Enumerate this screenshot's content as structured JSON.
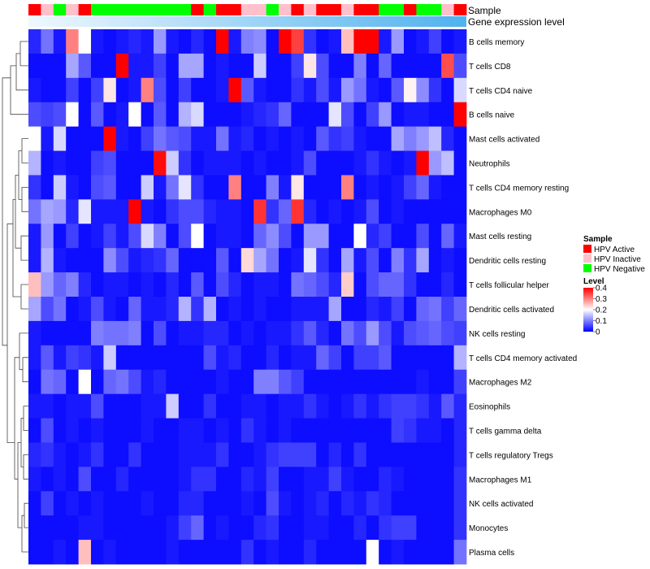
{
  "chart_data": {
    "type": "heatmap",
    "title": "",
    "annotation_rows": [
      "Sample",
      "Gene expression level"
    ],
    "rows": [
      "B cells memory",
      "T cells CD8",
      "T cells CD4 naive",
      "B cells naive",
      "Mast cells activated",
      "Neutrophils",
      "T cells CD4 memory resting",
      "Macrophages M0",
      "Mast cells resting",
      "Dendritic cells resting",
      "T cells follicular helper",
      "Dendritic cells activated",
      "NK cells resting",
      "T cells CD4 memory activated",
      "Macrophages M2",
      "Eosinophils",
      "T cells gamma delta",
      "T cells regulatory  Tregs",
      "Macrophages M1",
      "NK cells activated",
      "Monocytes",
      "Plasma cells"
    ],
    "n_columns": 35,
    "sample_groups": [
      "HPV Active",
      "HPV Inactive",
      "HPV Negative",
      "HPV Inactive",
      "HPV Active",
      "HPV Negative",
      "HPV Negative",
      "HPV Negative",
      "HPV Negative",
      "HPV Negative",
      "HPV Negative",
      "HPV Negative",
      "HPV Negative",
      "HPV Active",
      "HPV Negative",
      "HPV Active",
      "HPV Active",
      "HPV Inactive",
      "HPV Inactive",
      "HPV Negative",
      "HPV Inactive",
      "HPV Active",
      "HPV Inactive",
      "HPV Active",
      "HPV Active",
      "HPV Inactive",
      "HPV Active",
      "HPV Active",
      "HPV Negative",
      "HPV Negative",
      "HPV Active",
      "HPV Negative",
      "HPV Negative",
      "HPV Inactive",
      "HPV Active"
    ],
    "expression_gradient": [
      "#f0f8fe",
      "#4fb2ee"
    ],
    "values": [
      [
        0.03,
        0.09,
        0.02,
        0.3,
        0.2,
        0.02,
        0.01,
        0.02,
        0.03,
        0.02,
        0.12,
        0.02,
        0.01,
        0.03,
        0.01,
        0.4,
        0.02,
        0.1,
        0.11,
        0.01,
        0.4,
        0.35,
        0.04,
        0.01,
        0.02,
        0.25,
        0.4,
        0.4,
        0.02,
        0.12,
        0.01,
        0.02,
        0.05,
        0.01,
        0.02
      ],
      [
        0.01,
        0.01,
        0.01,
        0.13,
        0.07,
        0.01,
        0.01,
        0.4,
        0.02,
        0.02,
        0.05,
        0.01,
        0.13,
        0.13,
        0.01,
        0.02,
        0.01,
        0.01,
        0.16,
        0.01,
        0.01,
        0.05,
        0.22,
        0.06,
        0.01,
        0.01,
        0.1,
        0.01,
        0.08,
        0.01,
        0.01,
        0.01,
        0.01,
        0.34,
        0.06
      ],
      [
        0.02,
        0.01,
        0.01,
        0.05,
        0.01,
        0.05,
        0.22,
        0.01,
        0.02,
        0.3,
        0.06,
        0.01,
        0.05,
        0.01,
        0.01,
        0.02,
        0.4,
        0.07,
        0.02,
        0.01,
        0.01,
        0.04,
        0.02,
        0.06,
        0.02,
        0.12,
        0.09,
        0.02,
        0.01,
        0.07,
        0.21,
        0.11,
        0.04,
        0.01,
        0.17
      ],
      [
        0.06,
        0.05,
        0.06,
        0.2,
        0.01,
        0.07,
        0.01,
        0.02,
        0.2,
        0.01,
        0.07,
        0.01,
        0.14,
        0.17,
        0.01,
        0.01,
        0.01,
        0.02,
        0.03,
        0.04,
        0.08,
        0.01,
        0.01,
        0.01,
        0.18,
        0.06,
        0.01,
        0.05,
        0.12,
        0.01,
        0.02,
        0.02,
        0.01,
        0.01,
        0.4
      ],
      [
        0.2,
        0.02,
        0.17,
        0.01,
        0.01,
        0.01,
        0.4,
        0.02,
        0.01,
        0.05,
        0.09,
        0.07,
        0.06,
        0.02,
        0.02,
        0.09,
        0.02,
        0.03,
        0.01,
        0.02,
        0.01,
        0.02,
        0.01,
        0.07,
        0.04,
        0.05,
        0.02,
        0.01,
        0.01,
        0.13,
        0.1,
        0.12,
        0.15,
        0.03,
        0.01
      ],
      [
        0.14,
        0.01,
        0.02,
        0.01,
        0.01,
        0.05,
        0.06,
        0.01,
        0.01,
        0.01,
        0.39,
        0.16,
        0.04,
        0.01,
        0.02,
        0.02,
        0.02,
        0.01,
        0.02,
        0.01,
        0.01,
        0.02,
        0.06,
        0.01,
        0.01,
        0.01,
        0.02,
        0.04,
        0.02,
        0.01,
        0.02,
        0.4,
        0.12,
        0.15,
        0.01
      ],
      [
        0.04,
        0.01,
        0.16,
        0.02,
        0.01,
        0.06,
        0.07,
        0.01,
        0.01,
        0.16,
        0.02,
        0.09,
        0.18,
        0.04,
        0.01,
        0.01,
        0.3,
        0.01,
        0.01,
        0.1,
        0.02,
        0.22,
        0.01,
        0.01,
        0.01,
        0.3,
        0.01,
        0.02,
        0.01,
        0.02,
        0.05,
        0.08,
        0.02,
        0.01,
        0.01
      ],
      [
        0.09,
        0.13,
        0.12,
        0.03,
        0.18,
        0.02,
        0.02,
        0.02,
        0.4,
        0.02,
        0.01,
        0.04,
        0.06,
        0.06,
        0.03,
        0.02,
        0.02,
        0.01,
        0.36,
        0.04,
        0.08,
        0.36,
        0.03,
        0.01,
        0.02,
        0.01,
        0.02,
        0.06,
        0.01,
        0.02,
        0.01,
        0.01,
        0.01,
        0.01,
        0.01
      ],
      [
        0.02,
        0.12,
        0.01,
        0.05,
        0.01,
        0.02,
        0.05,
        0.02,
        0.06,
        0.17,
        0.1,
        0.01,
        0.06,
        0.2,
        0.01,
        0.02,
        0.02,
        0.01,
        0.08,
        0.11,
        0.06,
        0.01,
        0.12,
        0.12,
        0.01,
        0.01,
        0.2,
        0.03,
        0.05,
        0.01,
        0.01,
        0.06,
        0.01,
        0.08,
        0.02
      ],
      [
        0.02,
        0.14,
        0.02,
        0.01,
        0.01,
        0.01,
        0.11,
        0.06,
        0.02,
        0.03,
        0.04,
        0.08,
        0.01,
        0.01,
        0.01,
        0.07,
        0.01,
        0.23,
        0.13,
        0.09,
        0.01,
        0.02,
        0.18,
        0.04,
        0.01,
        0.13,
        0.02,
        0.06,
        0.01,
        0.1,
        0.04,
        0.13,
        0.01,
        0.02,
        0.01
      ],
      [
        0.25,
        0.12,
        0.08,
        0.1,
        0.03,
        0.01,
        0.02,
        0.02,
        0.01,
        0.02,
        0.01,
        0.03,
        0.01,
        0.07,
        0.01,
        0.06,
        0.03,
        0.01,
        0.02,
        0.02,
        0.01,
        0.09,
        0.08,
        0.06,
        0.03,
        0.24,
        0.01,
        0.06,
        0.08,
        0.08,
        0.04,
        0.01,
        0.01,
        0.03,
        0.01
      ],
      [
        0.13,
        0.06,
        0.09,
        0.01,
        0.02,
        0.06,
        0.02,
        0.01,
        0.08,
        0.02,
        0.02,
        0.03,
        0.14,
        0.04,
        0.14,
        0.01,
        0.02,
        0.01,
        0.02,
        0.01,
        0.01,
        0.02,
        0.02,
        0.02,
        0.13,
        0.01,
        0.01,
        0.03,
        0.02,
        0.05,
        0.01,
        0.08,
        0.09,
        0.05,
        0.08
      ],
      [
        0.02,
        0.01,
        0.01,
        0.01,
        0.01,
        0.1,
        0.09,
        0.09,
        0.1,
        0.01,
        0.06,
        0.01,
        0.02,
        0.02,
        0.03,
        0.03,
        0.01,
        0.02,
        0.01,
        0.02,
        0.02,
        0.04,
        0.07,
        0.03,
        0.01,
        0.09,
        0.06,
        0.12,
        0.06,
        0.02,
        0.06,
        0.07,
        0.08,
        0.06,
        0.05
      ],
      [
        0.02,
        0.07,
        0.02,
        0.05,
        0.04,
        0.02,
        0.16,
        0.01,
        0.01,
        0.01,
        0.01,
        0.01,
        0.01,
        0.01,
        0.06,
        0.02,
        0.03,
        0.01,
        0.01,
        0.03,
        0.01,
        0.02,
        0.02,
        0.08,
        0.05,
        0.01,
        0.05,
        0.05,
        0.07,
        0.01,
        0.01,
        0.01,
        0.01,
        0.01,
        0.14
      ],
      [
        0.01,
        0.09,
        0.08,
        0.01,
        0.2,
        0.01,
        0.08,
        0.09,
        0.06,
        0.02,
        0.03,
        0.01,
        0.01,
        0.01,
        0.01,
        0.02,
        0.01,
        0.01,
        0.1,
        0.1,
        0.07,
        0.05,
        0.01,
        0.01,
        0.01,
        0.01,
        0.01,
        0.01,
        0.01,
        0.01,
        0.01,
        0.02,
        0.01,
        0.01,
        0.05
      ],
      [
        0.02,
        0.02,
        0.01,
        0.02,
        0.02,
        0.06,
        0.01,
        0.01,
        0.01,
        0.02,
        0.02,
        0.16,
        0.01,
        0.01,
        0.04,
        0.01,
        0.01,
        0.02,
        0.02,
        0.01,
        0.02,
        0.02,
        0.04,
        0.02,
        0.01,
        0.02,
        0.04,
        0.02,
        0.04,
        0.05,
        0.05,
        0.04,
        0.02,
        0.07,
        0.03
      ],
      [
        0.01,
        0.06,
        0.01,
        0.02,
        0.01,
        0.02,
        0.01,
        0.01,
        0.01,
        0.02,
        0.01,
        0.01,
        0.02,
        0.02,
        0.01,
        0.02,
        0.01,
        0.04,
        0.02,
        0.01,
        0.02,
        0.01,
        0.01,
        0.01,
        0.01,
        0.01,
        0.01,
        0.01,
        0.01,
        0.05,
        0.04,
        0.02,
        0.02,
        0.01,
        0.03
      ],
      [
        0.03,
        0.04,
        0.02,
        0.01,
        0.02,
        0.04,
        0.01,
        0.01,
        0.04,
        0.01,
        0.01,
        0.01,
        0.02,
        0.02,
        0.02,
        0.04,
        0.01,
        0.01,
        0.02,
        0.04,
        0.05,
        0.05,
        0.05,
        0.01,
        0.03,
        0.01,
        0.04,
        0.01,
        0.01,
        0.01,
        0.01,
        0.01,
        0.01,
        0.01,
        0.03
      ],
      [
        0.02,
        0.01,
        0.02,
        0.01,
        0.06,
        0.01,
        0.01,
        0.03,
        0.01,
        0.01,
        0.01,
        0.01,
        0.02,
        0.04,
        0.04,
        0.01,
        0.01,
        0.03,
        0.02,
        0.05,
        0.01,
        0.01,
        0.02,
        0.02,
        0.05,
        0.02,
        0.01,
        0.01,
        0.03,
        0.02,
        0.01,
        0.01,
        0.01,
        0.01,
        0.04
      ],
      [
        0.01,
        0.05,
        0.01,
        0.02,
        0.01,
        0.02,
        0.01,
        0.01,
        0.01,
        0.02,
        0.01,
        0.01,
        0.03,
        0.03,
        0.01,
        0.01,
        0.01,
        0.02,
        0.01,
        0.06,
        0.02,
        0.01,
        0.02,
        0.03,
        0.01,
        0.03,
        0.02,
        0.04,
        0.03,
        0.01,
        0.01,
        0.01,
        0.01,
        0.01,
        0.04
      ],
      [
        0.01,
        0.01,
        0.01,
        0.01,
        0.02,
        0.02,
        0.01,
        0.01,
        0.01,
        0.01,
        0.01,
        0.02,
        0.05,
        0.08,
        0.01,
        0.02,
        0.01,
        0.01,
        0.03,
        0.04,
        0.01,
        0.01,
        0.02,
        0.02,
        0.01,
        0.01,
        0.03,
        0.01,
        0.04,
        0.05,
        0.05,
        0.01,
        0.01,
        0.01,
        0.04
      ],
      [
        0.01,
        0.01,
        0.02,
        0.01,
        0.25,
        0.01,
        0.02,
        0.01,
        0.01,
        0.01,
        0.01,
        0.02,
        0.01,
        0.01,
        0.01,
        0.01,
        0.01,
        0.04,
        0.01,
        0.02,
        0.01,
        0.01,
        0.03,
        0.01,
        0.01,
        0.01,
        0.01,
        0.2,
        0.01,
        0.02,
        0.01,
        0.01,
        0.01,
        0.01,
        0.09
      ]
    ],
    "legend": {
      "sample_title": "Sample",
      "sample_entries": [
        {
          "label": "HPV Active",
          "color": "#ff0000"
        },
        {
          "label": "HPV Inactive",
          "color": "#ffc0cb"
        },
        {
          "label": "HPV Negative",
          "color": "#00ff00"
        }
      ],
      "level_title": "Level",
      "level_ticks": [
        "0.4",
        "0.3",
        "0.2",
        "0.1",
        "0"
      ],
      "level_range": [
        0,
        0.4
      ],
      "level_colors": [
        "#0000ff",
        "#ffffff",
        "#ff0000"
      ]
    }
  }
}
